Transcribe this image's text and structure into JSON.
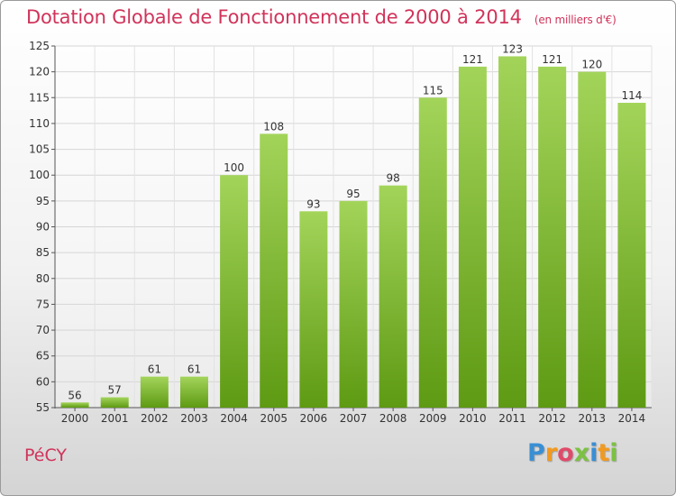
{
  "header": {
    "title": "Dotation Globale de Fonctionnement de 2000 à 2014",
    "unit": "(en milliers d'€)"
  },
  "commune": "PéCY",
  "logo": {
    "letters": [
      "P",
      "r",
      "o",
      "x",
      "i",
      "t",
      "i"
    ]
  },
  "colors": {
    "title": "#d1335a",
    "bar_top": "#a3d45a",
    "bar_bottom": "#5e9a13"
  },
  "chart_data": {
    "type": "bar",
    "title": "Dotation Globale de Fonctionnement de 2000 à 2014",
    "subtitle": "(en milliers d'€)",
    "xlabel": "",
    "ylabel": "",
    "categories": [
      "2000",
      "2001",
      "2002",
      "2003",
      "2004",
      "2005",
      "2006",
      "2007",
      "2008",
      "2009",
      "2010",
      "2011",
      "2012",
      "2013",
      "2014"
    ],
    "values": [
      56,
      57,
      61,
      61,
      100,
      108,
      93,
      95,
      98,
      115,
      121,
      123,
      121,
      120,
      114
    ],
    "ylim": [
      55,
      125
    ],
    "yticks": [
      55,
      60,
      65,
      70,
      75,
      80,
      85,
      90,
      95,
      100,
      105,
      110,
      115,
      120,
      125
    ],
    "grid": true,
    "legend": "none"
  }
}
